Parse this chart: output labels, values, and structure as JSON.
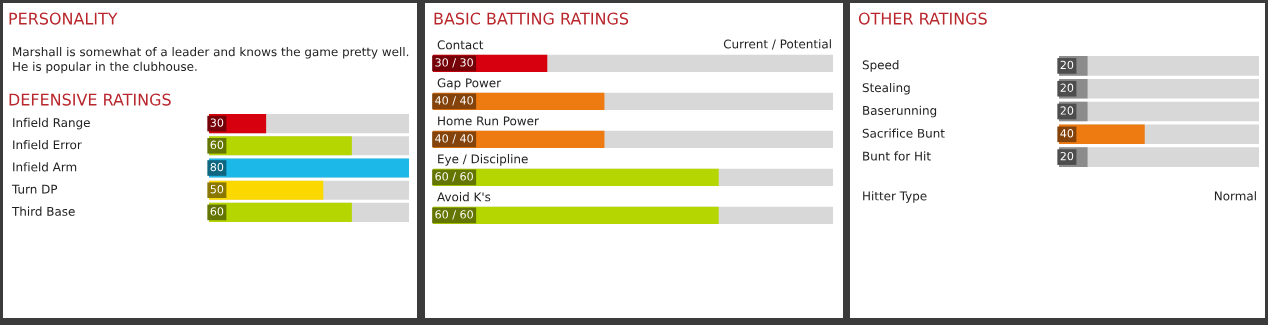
{
  "chart_data": [
    {
      "type": "other",
      "title": "PERSONALITY",
      "annotations": [
        "Marshall is somewhat of a leader and knows the game pretty well.\nHe is popular in the clubhouse."
      ]
    },
    {
      "type": "bar",
      "orientation": "horizontal",
      "title": "DEFENSIVE RATINGS",
      "categories": [
        "Infield Range",
        "Infield Error",
        "Infield Arm",
        "Turn DP",
        "Third Base"
      ],
      "values": [
        30,
        60,
        80,
        50,
        60
      ],
      "colors": [
        "#d7000f",
        "#b5d600",
        "#1cb9e8",
        "#fbd800",
        "#b5d600"
      ],
      "xlim": [
        10,
        80
      ],
      "data_labels": true,
      "tick_labels": "y"
    },
    {
      "type": "bar",
      "orientation": "horizontal",
      "title": "BASIC BATTING RATINGS",
      "categories": [
        "Contact",
        "Gap Power",
        "Home Run Power",
        "Eye / Discipline",
        "Avoid K's"
      ],
      "values": [
        30,
        40,
        40,
        60,
        60
      ],
      "value_labels": [
        "30 / 30",
        "40 / 40",
        "40 / 40",
        "60 / 60",
        "60 / 60"
      ],
      "colors": [
        "#d7000f",
        "#ee7a12",
        "#ee7a12",
        "#b5d600",
        "#b5d600"
      ],
      "xlim": [
        10,
        80
      ],
      "tick_labels": "y",
      "annotations": [
        "Current / Potential"
      ]
    },
    {
      "type": "bar",
      "orientation": "horizontal",
      "title": "OTHER RATINGS",
      "categories": [
        "Speed",
        "Stealing",
        "Baserunning",
        "Sacrifice Bunt",
        "Bunt for Hit"
      ],
      "values": [
        20,
        20,
        20,
        40,
        20
      ],
      "colors": [
        "#8c8c8c",
        "#8c8c8c",
        "#8c8c8c",
        "#ee7a12",
        "#8c8c8c"
      ],
      "xlim": [
        10,
        80
      ],
      "data_labels": true,
      "tick_labels": "y",
      "annotations": [
        "Hitter Type",
        "Normal"
      ]
    }
  ]
}
